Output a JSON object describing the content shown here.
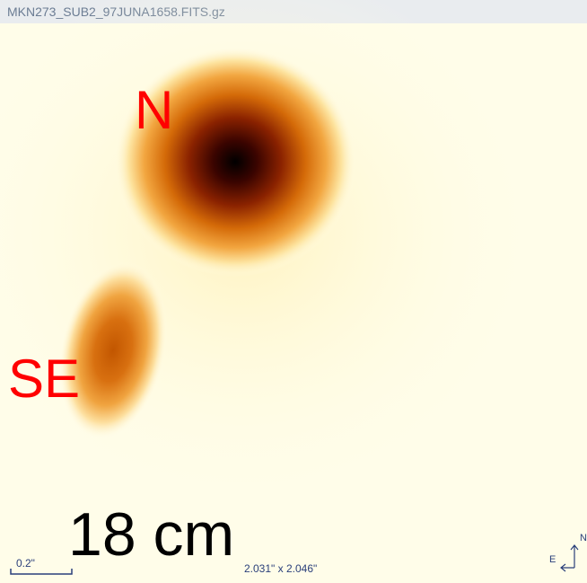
{
  "title_bar": {
    "filename": "MKN273_SUB2_97JUNA1658.FITS.gz"
  },
  "image": {
    "labels": {
      "north_source": "N",
      "southeast_source": "SE",
      "wavelength": "18 cm"
    }
  },
  "footer": {
    "scale_bar": "0.2\"",
    "field_size": "2.031\" x 2.046\""
  },
  "compass": {
    "east": "E",
    "north": "N"
  }
}
